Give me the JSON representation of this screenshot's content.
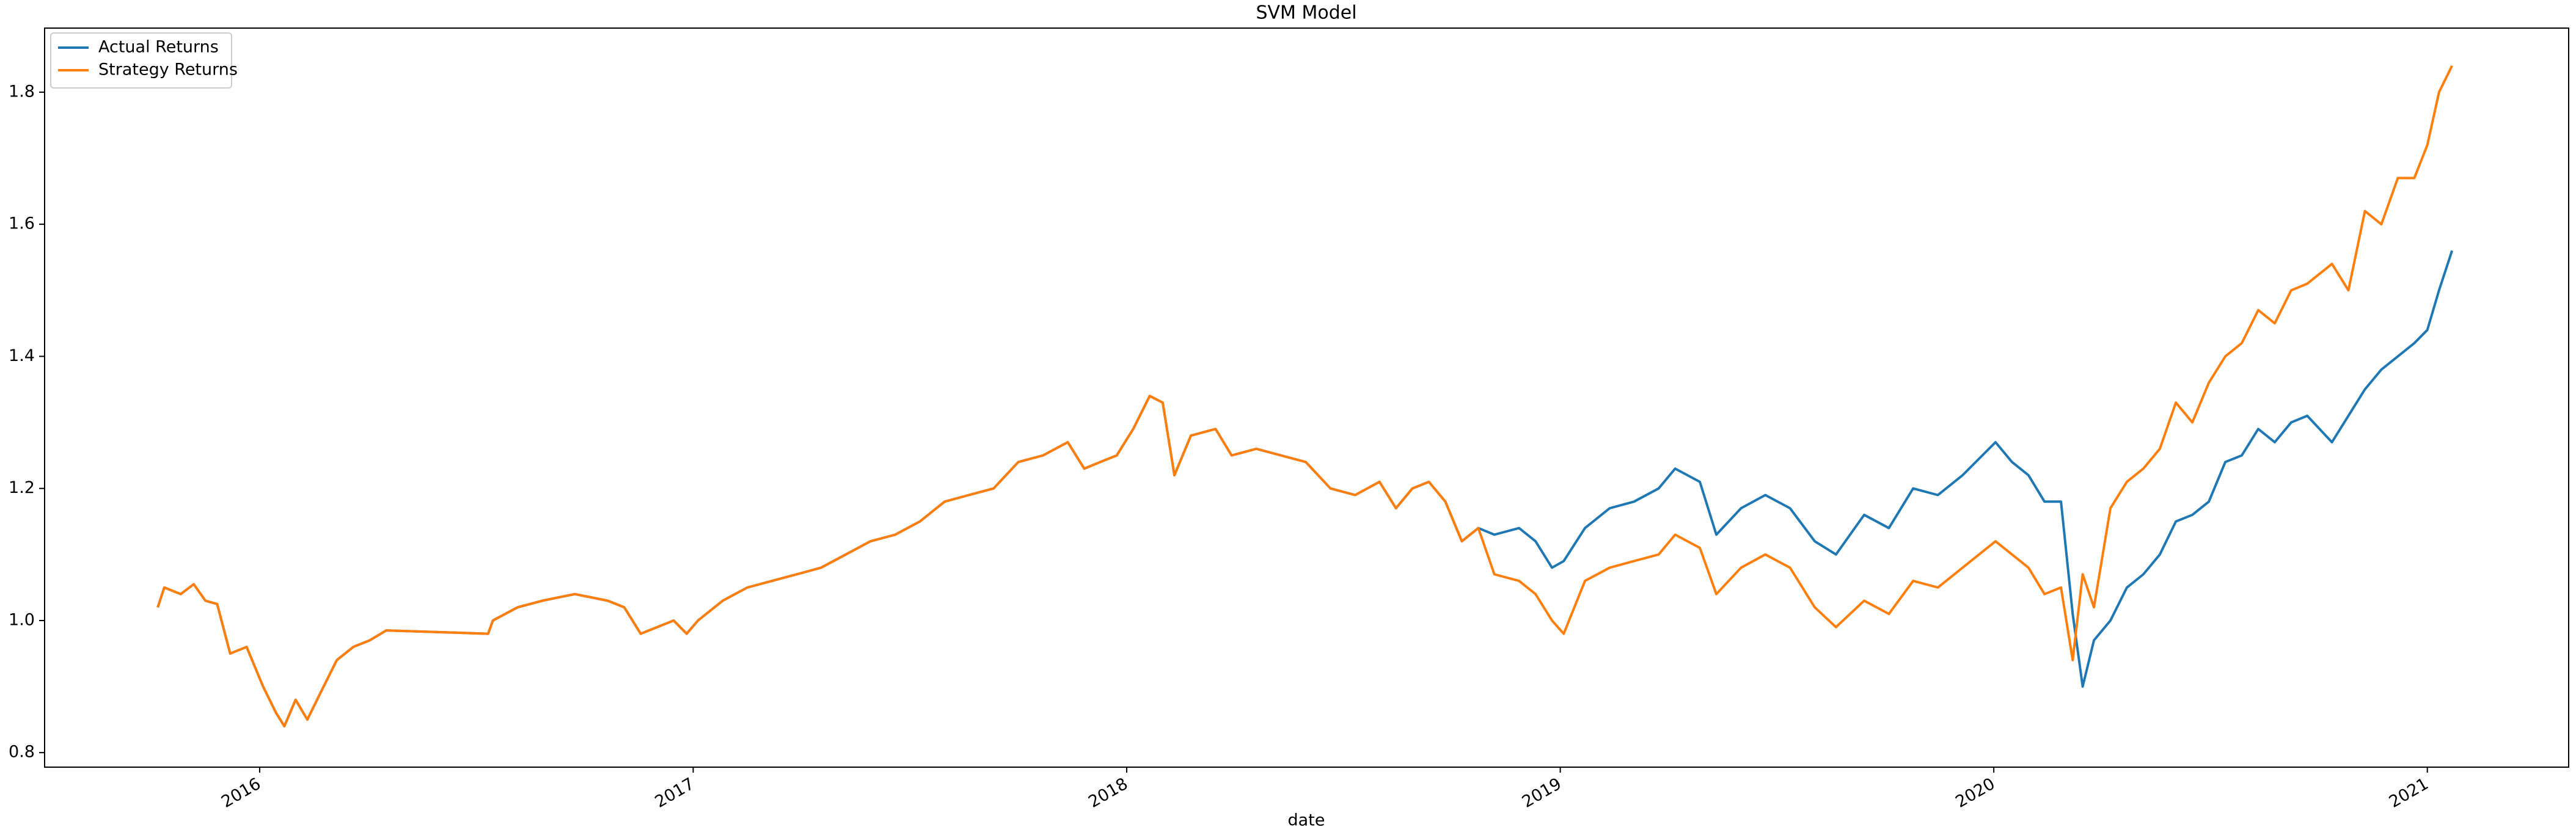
{
  "chart_data": {
    "type": "line",
    "title": "SVM Model",
    "x_label": "date",
    "xlim": [
      2015.504,
      2021.326
    ],
    "ylim": [
      0.778,
      1.897
    ],
    "xticks": [
      2016,
      2017,
      2018,
      2019,
      2020,
      2021
    ],
    "yticks": [
      0.8,
      {
        "value": 1,
        "label": "1.0"
      },
      1.2,
      1.4,
      1.6,
      1.8
    ],
    "grid": false,
    "legend": "upper left",
    "x": [
      2015.765,
      2015.78,
      2015.818,
      2015.848,
      2015.875,
      2015.902,
      2015.932,
      2015.97,
      2016.008,
      2016.038,
      2016.057,
      2016.083,
      2016.11,
      2016.14,
      2016.178,
      2016.216,
      2016.254,
      2016.292,
      2016.527,
      2016.538,
      2016.595,
      2016.652,
      2016.727,
      2016.803,
      2016.841,
      2016.879,
      2016.917,
      2016.955,
      2016.985,
      2017.011,
      2017.068,
      2017.125,
      2017.182,
      2017.239,
      2017.295,
      2017.352,
      2017.409,
      2017.466,
      2017.523,
      2017.58,
      2017.636,
      2017.693,
      2017.75,
      2017.807,
      2017.864,
      2017.902,
      2017.939,
      2017.977,
      2018.015,
      2018.053,
      2018.083,
      2018.11,
      2018.148,
      2018.205,
      2018.242,
      2018.299,
      2018.356,
      2018.413,
      2018.47,
      2018.527,
      2018.583,
      2018.621,
      2018.659,
      2018.697,
      2018.735,
      2018.773,
      2018.811,
      2018.848,
      2018.905,
      2018.943,
      2018.981,
      2019.008,
      2019.057,
      2019.114,
      2019.17,
      2019.227,
      2019.265,
      2019.322,
      2019.36,
      2019.417,
      2019.473,
      2019.53,
      2019.587,
      2019.636,
      2019.701,
      2019.758,
      2019.814,
      2019.871,
      2019.928,
      2020.004,
      2020.042,
      2020.08,
      2020.117,
      2020.155,
      2020.182,
      2020.205,
      2020.231,
      2020.269,
      2020.307,
      2020.345,
      2020.383,
      2020.42,
      2020.458,
      2020.496,
      2020.534,
      2020.572,
      2020.61,
      2020.648,
      2020.686,
      2020.723,
      2020.78,
      2020.818,
      2020.856,
      2020.894,
      2020.932,
      2020.97,
      2021.0,
      2021.027,
      2021.057
    ],
    "series": [
      {
        "name": "Actual Returns",
        "color": "#1f77b4",
        "values": [
          1.02,
          1.05,
          1.04,
          1.055,
          1.03,
          1.025,
          0.95,
          0.96,
          0.9,
          0.86,
          0.84,
          0.88,
          0.85,
          0.89,
          0.94,
          0.96,
          0.97,
          0.985,
          0.98,
          1.0,
          1.02,
          1.03,
          1.04,
          1.03,
          1.02,
          0.98,
          0.99,
          1.0,
          0.98,
          1.0,
          1.03,
          1.05,
          1.06,
          1.07,
          1.08,
          1.1,
          1.12,
          1.13,
          1.15,
          1.18,
          1.19,
          1.2,
          1.24,
          1.25,
          1.27,
          1.23,
          1.24,
          1.25,
          1.29,
          1.34,
          1.33,
          1.22,
          1.28,
          1.29,
          1.25,
          1.26,
          1.25,
          1.24,
          1.2,
          1.19,
          1.21,
          1.17,
          1.2,
          1.21,
          1.18,
          1.12,
          1.14,
          1.13,
          1.14,
          1.12,
          1.08,
          1.09,
          1.14,
          1.17,
          1.18,
          1.2,
          1.23,
          1.21,
          1.13,
          1.17,
          1.19,
          1.17,
          1.12,
          1.1,
          1.16,
          1.14,
          1.2,
          1.19,
          1.22,
          1.27,
          1.24,
          1.22,
          1.18,
          1.18,
          1.01,
          0.9,
          0.97,
          1.0,
          1.05,
          1.07,
          1.1,
          1.15,
          1.16,
          1.18,
          1.24,
          1.25,
          1.29,
          1.27,
          1.3,
          1.31,
          1.27,
          1.31,
          1.35,
          1.38,
          1.4,
          1.42,
          1.44,
          1.5,
          1.56
        ]
      },
      {
        "name": "Strategy Returns",
        "color": "#ff7f0e",
        "values": [
          1.02,
          1.05,
          1.04,
          1.055,
          1.03,
          1.025,
          0.95,
          0.96,
          0.9,
          0.86,
          0.84,
          0.88,
          0.85,
          0.89,
          0.94,
          0.96,
          0.97,
          0.985,
          0.98,
          1.0,
          1.02,
          1.03,
          1.04,
          1.03,
          1.02,
          0.98,
          0.99,
          1.0,
          0.98,
          1.0,
          1.03,
          1.05,
          1.06,
          1.07,
          1.08,
          1.1,
          1.12,
          1.13,
          1.15,
          1.18,
          1.19,
          1.2,
          1.24,
          1.25,
          1.27,
          1.23,
          1.24,
          1.25,
          1.29,
          1.34,
          1.33,
          1.22,
          1.28,
          1.29,
          1.25,
          1.26,
          1.25,
          1.24,
          1.2,
          1.19,
          1.21,
          1.17,
          1.2,
          1.21,
          1.18,
          1.12,
          1.14,
          1.07,
          1.06,
          1.04,
          1.0,
          0.98,
          1.06,
          1.08,
          1.09,
          1.1,
          1.13,
          1.11,
          1.04,
          1.08,
          1.1,
          1.08,
          1.02,
          0.99,
          1.03,
          1.01,
          1.06,
          1.05,
          1.08,
          1.12,
          1.1,
          1.08,
          1.04,
          1.05,
          0.94,
          1.07,
          1.02,
          1.17,
          1.21,
          1.23,
          1.26,
          1.33,
          1.3,
          1.36,
          1.4,
          1.42,
          1.47,
          1.45,
          1.5,
          1.51,
          1.54,
          1.5,
          1.62,
          1.6,
          1.67,
          1.67,
          1.72,
          1.8,
          1.84
        ]
      }
    ]
  }
}
